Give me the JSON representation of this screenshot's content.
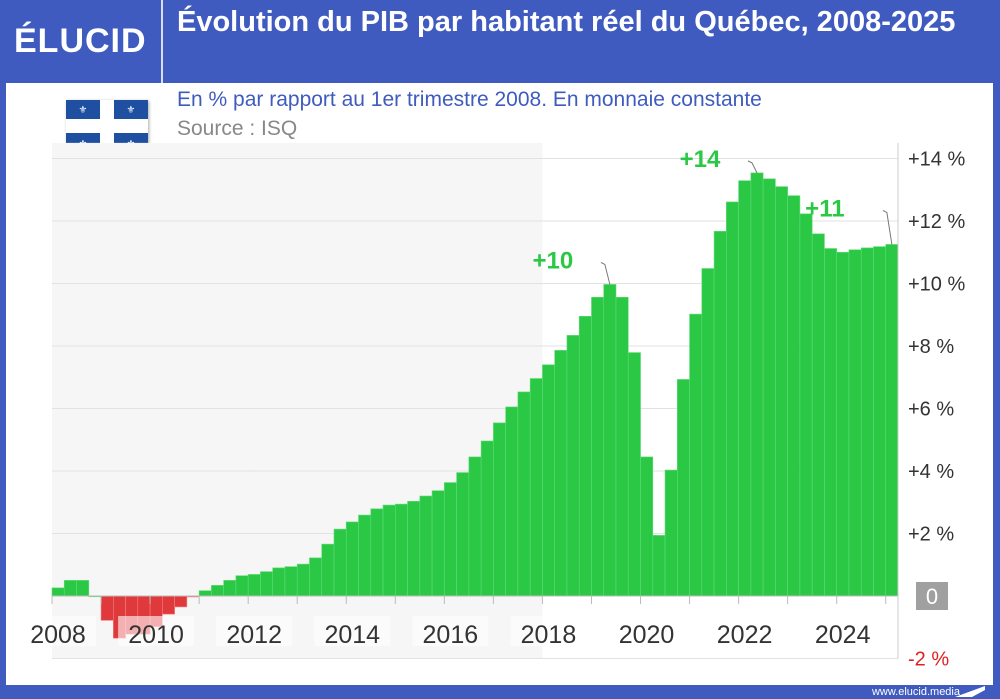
{
  "brand": {
    "logo": "ÉLUCID",
    "footer_url": "www.elucid.media"
  },
  "colors": {
    "frame": "#3f5bbf",
    "positive": "#2bc846",
    "negative": "#e0393c",
    "annotation": "#2bc846",
    "negative_label": "#e02020"
  },
  "chart_data": {
    "type": "bar",
    "title": "Évolution du PIB par habitant réel du Québec, 2008-2025",
    "subtitle": "En % par rapport au 1er trimestre 2008. En monnaie constante",
    "source": "Source : ISQ",
    "x_start": "2008 Q1",
    "x_end": "2025 Q1",
    "frequency": "quarterly",
    "x_ticks": [
      "2008",
      "2010",
      "2012",
      "2014",
      "2016",
      "2018",
      "2020",
      "2022",
      "2024"
    ],
    "y_ticks": [
      {
        "v": 14,
        "label": "+14 %"
      },
      {
        "v": 12,
        "label": "+12 %"
      },
      {
        "v": 10,
        "label": "+10 %"
      },
      {
        "v": 8,
        "label": "+8 %"
      },
      {
        "v": 6,
        "label": "+6 %"
      },
      {
        "v": 4,
        "label": "+4 %"
      },
      {
        "v": 2,
        "label": "+2 %"
      },
      {
        "v": 0,
        "label": "0"
      },
      {
        "v": -2,
        "label": "-2 %"
      }
    ],
    "ylim": [
      -2,
      14.5
    ],
    "grid": true,
    "values": [
      0.26,
      0.5,
      0.5,
      0.0,
      -0.78,
      -1.35,
      -1.22,
      -1.22,
      -0.98,
      -0.58,
      -0.35,
      -0.03,
      0.17,
      0.34,
      0.5,
      0.65,
      0.69,
      0.78,
      0.9,
      0.94,
      1.02,
      1.22,
      1.66,
      2.14,
      2.37,
      2.59,
      2.79,
      2.91,
      2.94,
      3.03,
      3.2,
      3.37,
      3.63,
      3.95,
      4.45,
      4.96,
      5.54,
      6.05,
      6.53,
      6.96,
      7.4,
      7.86,
      8.34,
      8.95,
      9.56,
      9.97,
      9.56,
      7.79,
      4.45,
      1.94,
      4.03,
      6.93,
      9.02,
      10.48,
      11.67,
      12.61,
      13.29,
      13.54,
      13.35,
      13.1,
      12.81,
      12.23,
      11.59,
      11.12,
      11.0,
      11.08,
      11.14,
      11.18,
      11.25
    ],
    "annotations": [
      {
        "index": 45,
        "label": "+10"
      },
      {
        "index": 57,
        "label": "+14"
      },
      {
        "index": 68,
        "label": "+11"
      }
    ]
  }
}
